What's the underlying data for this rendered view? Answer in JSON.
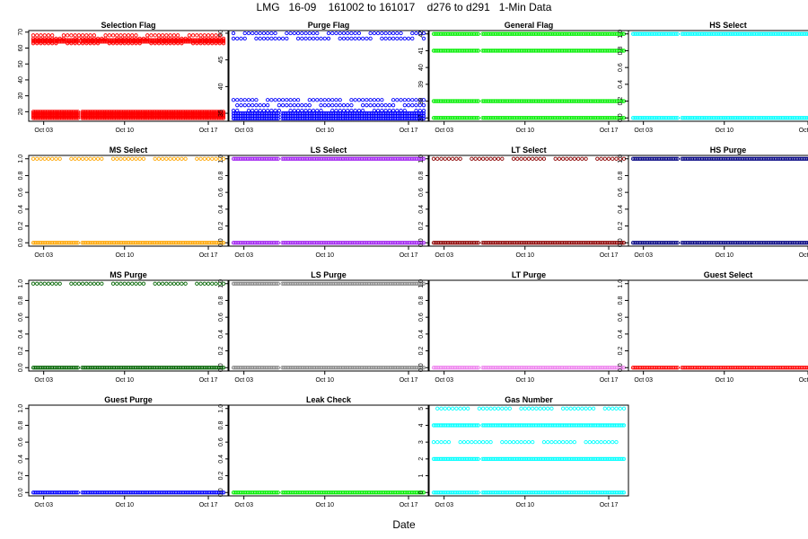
{
  "figure": {
    "title": "LMG   16-09    161002 to 161017    d276 to d291   1-Min Data",
    "xlabel": "Date",
    "date_ticks": [
      "Oct 03",
      "Oct 10",
      "Oct 17"
    ]
  },
  "chart_data": [
    {
      "type": "scatter",
      "title": "Selection Flag",
      "color": "#ff0000",
      "ylim": [
        14,
        71
      ],
      "yticks": [
        20,
        30,
        40,
        50,
        60,
        70
      ],
      "levels": [
        {
          "y": 16,
          "dense": true
        },
        {
          "y": 17,
          "dense": true
        },
        {
          "y": 18,
          "dense": true
        },
        {
          "y": 19,
          "dense": true
        },
        {
          "y": 20,
          "dense": true
        },
        {
          "y": 63,
          "dense": false
        },
        {
          "y": 64,
          "dense": true
        },
        {
          "y": 65,
          "dense": true
        },
        {
          "y": 66,
          "dense": false
        },
        {
          "y": 68,
          "dense": false
        }
      ]
    },
    {
      "type": "scatter",
      "title": "Purge Flag",
      "color": "#0000ff",
      "ylim": [
        33.5,
        50.5
      ],
      "yticks": [
        35,
        40,
        45,
        50
      ],
      "levels": [
        {
          "y": 34,
          "dense": true
        },
        {
          "y": 34.5,
          "dense": true
        },
        {
          "y": 35,
          "dense": true
        },
        {
          "y": 35.5,
          "dense": false
        },
        {
          "y": 36.5,
          "dense": false
        },
        {
          "y": 37.5,
          "dense": false
        },
        {
          "y": 49,
          "dense": false
        },
        {
          "y": 50,
          "dense": false
        }
      ]
    },
    {
      "type": "scatter",
      "title": "General Flag",
      "color": "#00ee00",
      "ylim": [
        36.8,
        42.2
      ],
      "yticks": [
        37,
        38,
        39,
        40,
        41,
        42
      ],
      "levels": [
        {
          "y": 37,
          "dense": true
        },
        {
          "y": 38,
          "dense": true
        },
        {
          "y": 41,
          "dense": true
        },
        {
          "y": 42,
          "dense": true
        }
      ]
    },
    {
      "type": "scatter",
      "title": "HS Select",
      "color": "#00ffff",
      "ylim": [
        -0.04,
        1.04
      ],
      "yticks": [
        0.0,
        0.2,
        0.4,
        0.6,
        0.8,
        1.0
      ],
      "levels": [
        {
          "y": 0,
          "dense": true
        },
        {
          "y": 1,
          "dense": true
        }
      ]
    },
    {
      "type": "scatter",
      "title": "MS Select",
      "color": "#ffa500",
      "ylim": [
        -0.04,
        1.04
      ],
      "yticks": [
        0.0,
        0.2,
        0.4,
        0.6,
        0.8,
        1.0
      ],
      "levels": [
        {
          "y": 0,
          "dense": true
        },
        {
          "y": 1,
          "dense": false
        }
      ]
    },
    {
      "type": "scatter",
      "title": "LS Select",
      "color": "#a020f0",
      "ylim": [
        -0.04,
        1.04
      ],
      "yticks": [
        0.0,
        0.2,
        0.4,
        0.6,
        0.8,
        1.0
      ],
      "levels": [
        {
          "y": 0,
          "dense": true
        },
        {
          "y": 1,
          "dense": true
        }
      ]
    },
    {
      "type": "scatter",
      "title": "LT Select",
      "color": "#8b0000",
      "ylim": [
        -0.04,
        1.04
      ],
      "yticks": [
        0.0,
        0.2,
        0.4,
        0.6,
        0.8,
        1.0
      ],
      "levels": [
        {
          "y": 0,
          "dense": true
        },
        {
          "y": 1,
          "dense": false
        }
      ]
    },
    {
      "type": "scatter",
      "title": "HS Purge",
      "color": "#000080",
      "ylim": [
        -0.04,
        1.04
      ],
      "yticks": [
        0.0,
        0.2,
        0.4,
        0.6,
        0.8,
        1.0
      ],
      "levels": [
        {
          "y": 0,
          "dense": true
        },
        {
          "y": 1,
          "dense": true
        }
      ]
    },
    {
      "type": "scatter",
      "title": "MS Purge",
      "color": "#006400",
      "ylim": [
        -0.04,
        1.04
      ],
      "yticks": [
        0.0,
        0.2,
        0.4,
        0.6,
        0.8,
        1.0
      ],
      "levels": [
        {
          "y": 0,
          "dense": true
        },
        {
          "y": 1,
          "dense": false
        }
      ]
    },
    {
      "type": "scatter",
      "title": "LS Purge",
      "color": "#888888",
      "ylim": [
        -0.04,
        1.04
      ],
      "yticks": [
        0.0,
        0.2,
        0.4,
        0.6,
        0.8,
        1.0
      ],
      "levels": [
        {
          "y": 0,
          "dense": true
        },
        {
          "y": 1,
          "dense": true
        }
      ]
    },
    {
      "type": "scatter",
      "title": "LT Purge",
      "color": "#ee82ee",
      "ylim": [
        -0.04,
        1.04
      ],
      "yticks": [
        0.0,
        0.2,
        0.4,
        0.6,
        0.8,
        1.0
      ],
      "levels": [
        {
          "y": 0,
          "dense": true
        }
      ]
    },
    {
      "type": "scatter",
      "title": "Guest Select",
      "color": "#ff0000",
      "ylim": [
        -0.04,
        1.04
      ],
      "yticks": [
        0.0,
        0.2,
        0.4,
        0.6,
        0.8,
        1.0
      ],
      "levels": [
        {
          "y": 0,
          "dense": true
        }
      ]
    },
    {
      "type": "scatter",
      "title": "Guest Purge",
      "color": "#0000ff",
      "ylim": [
        -0.04,
        1.04
      ],
      "yticks": [
        0.0,
        0.2,
        0.4,
        0.6,
        0.8,
        1.0
      ],
      "levels": [
        {
          "y": 0,
          "dense": true
        }
      ]
    },
    {
      "type": "scatter",
      "title": "Leak Check",
      "color": "#00ee00",
      "ylim": [
        -0.04,
        1.04
      ],
      "yticks": [
        0.0,
        0.2,
        0.4,
        0.6,
        0.8,
        1.0
      ],
      "levels": [
        {
          "y": 0,
          "dense": true
        }
      ]
    },
    {
      "type": "scatter",
      "title": "Gas Number",
      "color": "#00ffff",
      "ylim": [
        -0.2,
        5.2
      ],
      "yticks": [
        0,
        1,
        2,
        3,
        4,
        5
      ],
      "levels": [
        {
          "y": 0,
          "dense": true
        },
        {
          "y": 2,
          "dense": true
        },
        {
          "y": 3,
          "dense": false
        },
        {
          "y": 4,
          "dense": true
        },
        {
          "y": 5,
          "dense": false
        }
      ]
    }
  ]
}
